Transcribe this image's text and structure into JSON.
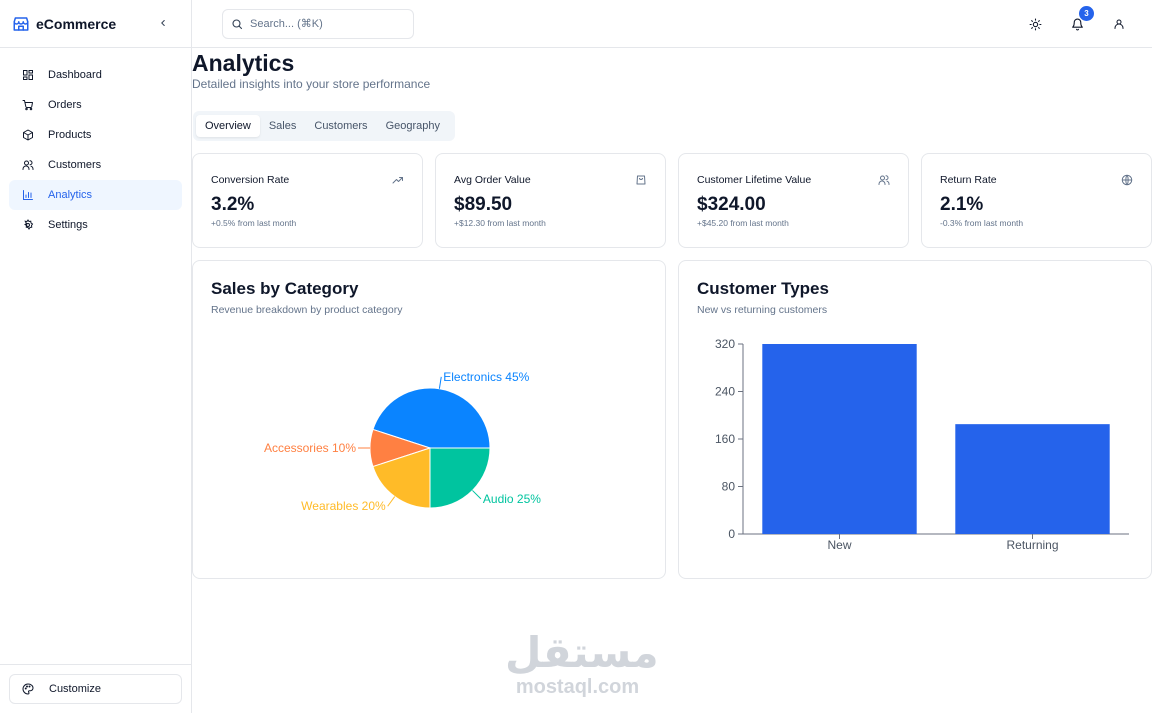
{
  "sidebar": {
    "brand": "eCommerce",
    "items": [
      {
        "label": "Dashboard",
        "icon": "dashboard-icon",
        "active": false
      },
      {
        "label": "Orders",
        "icon": "cart-icon",
        "active": false
      },
      {
        "label": "Products",
        "icon": "package-icon",
        "active": false
      },
      {
        "label": "Customers",
        "icon": "users-icon",
        "active": false
      },
      {
        "label": "Analytics",
        "icon": "bar-chart-icon",
        "active": true
      },
      {
        "label": "Settings",
        "icon": "gear-icon",
        "active": false
      }
    ],
    "customize_label": "Customize"
  },
  "header": {
    "search_placeholder": "Search... (⌘K)",
    "notification_count": "3"
  },
  "page": {
    "title": "Analytics",
    "subtitle": "Detailed insights into your store performance"
  },
  "tabs": [
    {
      "label": "Overview",
      "active": true
    },
    {
      "label": "Sales",
      "active": false
    },
    {
      "label": "Customers",
      "active": false
    },
    {
      "label": "Geography",
      "active": false
    }
  ],
  "stats": [
    {
      "label": "Conversion Rate",
      "value": "3.2%",
      "change": "+0.5% from last month",
      "icon": "trending-up-icon"
    },
    {
      "label": "Avg Order Value",
      "value": "$89.50",
      "change": "+$12.30 from last month",
      "icon": "shopping-bag-icon"
    },
    {
      "label": "Customer Lifetime Value",
      "value": "$324.00",
      "change": "+$45.20 from last month",
      "icon": "users-icon"
    },
    {
      "label": "Return Rate",
      "value": "2.1%",
      "change": "-0.3% from last month",
      "icon": "globe-icon"
    }
  ],
  "sales_panel": {
    "title": "Sales by Category",
    "subtitle": "Revenue breakdown by product category"
  },
  "customer_panel": {
    "title": "Customer Types",
    "subtitle": "New vs returning customers"
  },
  "watermark": {
    "arabic": "مستقل",
    "latin": "mostaql.com"
  },
  "colors": {
    "accent": "#2563eb",
    "electronics": "#0a84ff",
    "accessories": "#ff8042",
    "wearables": "#ffbb28",
    "audio": "#00c49f",
    "bar": "#2563eb"
  },
  "chart_data": [
    {
      "type": "pie",
      "title": "Sales by Category",
      "subtitle": "Revenue breakdown by product category",
      "slices": [
        {
          "label": "Electronics",
          "value": 45,
          "display": "Electronics 45%",
          "color": "#0a84ff"
        },
        {
          "label": "Accessories",
          "value": 10,
          "display": "Accessories 10%",
          "color": "#ff8042"
        },
        {
          "label": "Wearables",
          "value": 20,
          "display": "Wearables 20%",
          "color": "#ffbb28"
        },
        {
          "label": "Audio",
          "value": 25,
          "display": "Audio 25%",
          "color": "#00c49f"
        }
      ]
    },
    {
      "type": "bar",
      "title": "Customer Types",
      "subtitle": "New vs returning customers",
      "categories": [
        "New",
        "Returning"
      ],
      "values": [
        320,
        185
      ],
      "ylim": [
        0,
        320
      ],
      "yticks": [
        0,
        80,
        160,
        240,
        320
      ],
      "grid": false
    }
  ]
}
